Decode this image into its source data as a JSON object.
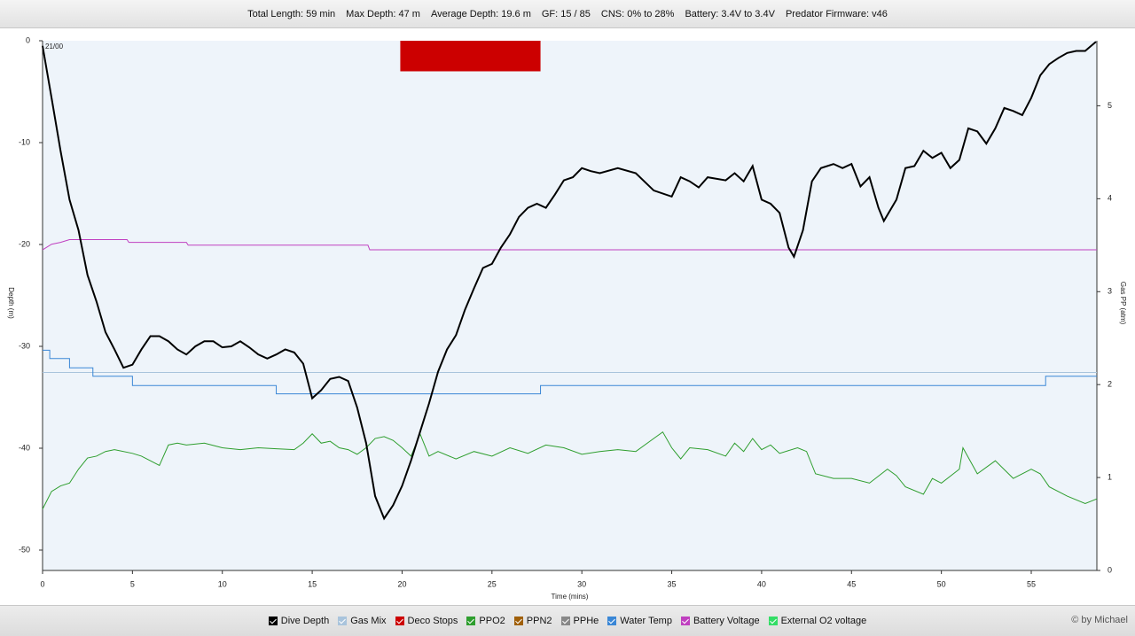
{
  "header": {
    "stats": [
      "Total Length: 59 min",
      "Max Depth: 47 m",
      "Average Depth: 19.6 m",
      "GF: 15 / 85",
      "CNS: 0% to 28%",
      "Battery: 3.4V to 3.4V",
      "Predator Firmware: v46"
    ]
  },
  "chart_data": {
    "type": "line",
    "annotation": "21/00",
    "xlabel": "Time (mins)",
    "ylabel": "Depth (m)",
    "y2label": "Gas PP (atm)",
    "xlim": [
      0,
      58.65
    ],
    "xticks": [
      0,
      5,
      10,
      15,
      20,
      25,
      30,
      35,
      40,
      45,
      50,
      55
    ],
    "ylim": [
      -52,
      0
    ],
    "yticks": [
      0,
      -10,
      -20,
      -30,
      -40,
      -50
    ],
    "y2lim": [
      0,
      5.7
    ],
    "y2ticks": [
      0,
      1,
      2,
      3,
      4,
      5
    ],
    "series": [
      {
        "name": "Dive Depth",
        "color": "#000000",
        "axis": "y",
        "kind": "line",
        "x": [
          0,
          0.5,
          1,
          1.5,
          2,
          2.5,
          3,
          3.5,
          4,
          4.5,
          5,
          5.5,
          6,
          6.5,
          7,
          7.5,
          8,
          8.5,
          9,
          9.5,
          10,
          10.5,
          11,
          11.5,
          12,
          12.5,
          13,
          13.5,
          14,
          14.5,
          15,
          15.5,
          16,
          16.5,
          17,
          17.5,
          18,
          18.5,
          19,
          19.5,
          20,
          20.5,
          21,
          21.5,
          22,
          22.5,
          23,
          23.5,
          24,
          24.5,
          25,
          25.5,
          26,
          26.5,
          27,
          27.5,
          28,
          28.5,
          29,
          29.5,
          30,
          30.5,
          31,
          32,
          33,
          34,
          35,
          35.5,
          36,
          36.5,
          37,
          38,
          38.5,
          39,
          39.5,
          40,
          40.5,
          41,
          41.5,
          41.8,
          42.3,
          42.8,
          43.3,
          44,
          44.5,
          45,
          45.5,
          46,
          46.5,
          46.8,
          47.5,
          48,
          48.5,
          49,
          49.5,
          50,
          50.5,
          51,
          51.5,
          52,
          52.5,
          53,
          53.5,
          54,
          54.5,
          55,
          55.5,
          56,
          56.5,
          57,
          57.5,
          58,
          58.6
        ],
        "values": [
          -0.5,
          -5.6,
          -10.8,
          -15.6,
          -18.6,
          -23,
          -25.6,
          -28.6,
          -30.3,
          -32.1,
          -31.8,
          -30.3,
          -29,
          -29,
          -29.5,
          -30.3,
          -30.8,
          -30,
          -29.5,
          -29.5,
          -30.1,
          -30,
          -29.5,
          -30.1,
          -30.8,
          -31.2,
          -30.8,
          -30.3,
          -30.6,
          -31.7,
          -35.1,
          -34.3,
          -33.2,
          -33,
          -33.4,
          -36,
          -39.5,
          -44.7,
          -46.9,
          -45.6,
          -43.7,
          -41.2,
          -38.4,
          -35.6,
          -32.5,
          -30.3,
          -28.9,
          -26.4,
          -24.3,
          -22.3,
          -21.9,
          -20.3,
          -19,
          -17.3,
          -16.4,
          -16,
          -16.4,
          -15.1,
          -13.7,
          -13.4,
          -12.5,
          -12.8,
          -13,
          -12.5,
          -13,
          -14.7,
          -15.3,
          -13.4,
          -13.8,
          -14.4,
          -13.4,
          -13.7,
          -13,
          -13.8,
          -12.3,
          -15.6,
          -16,
          -16.9,
          -20.3,
          -21.2,
          -18.6,
          -13.8,
          -12.5,
          -12.1,
          -12.5,
          -12.1,
          -14.3,
          -13.4,
          -16.4,
          -17.7,
          -15.6,
          -12.5,
          -12.3,
          -10.8,
          -11.5,
          -11,
          -12.5,
          -11.7,
          -8.6,
          -8.9,
          -10.1,
          -8.6,
          -6.6,
          -6.9,
          -7.3,
          -5.6,
          -3.4,
          -2.3,
          -1.7,
          -1.2,
          -1,
          -1,
          -0.1
        ]
      },
      {
        "name": "Gas Mix",
        "color": "#a9c4dc",
        "axis": "y2",
        "kind": "line",
        "x": [
          0,
          58.65
        ],
        "values": [
          2.13,
          2.13
        ]
      },
      {
        "name": "Deco Stops",
        "color": "#cc0000",
        "axis": "y",
        "kind": "band",
        "x": [
          19.9,
          27.7
        ],
        "values": [
          -3,
          -3
        ]
      },
      {
        "name": "PPO2",
        "color": "#2e9e2e",
        "axis": "y2",
        "kind": "line",
        "x": [
          0,
          0.5,
          1,
          1.5,
          2,
          2.5,
          3,
          3.5,
          4,
          5,
          5.5,
          6,
          6.5,
          7,
          7.5,
          8,
          9,
          10,
          11,
          12,
          13,
          14,
          14.5,
          15,
          15.5,
          16,
          16.5,
          17,
          17.5,
          18,
          18.5,
          19,
          19.5,
          20,
          20.5,
          21,
          21.5,
          22,
          23,
          24,
          25,
          26,
          27,
          28,
          29,
          30,
          31,
          32,
          33,
          34,
          34.5,
          35,
          35.5,
          36,
          37,
          38,
          38.5,
          39,
          39.5,
          40,
          40.5,
          41,
          42,
          42.5,
          43,
          44,
          45,
          46,
          47,
          47.5,
          48,
          49,
          49.5,
          50,
          51,
          51.2,
          52,
          53,
          54,
          55,
          55.5,
          56,
          57,
          58,
          58.65
        ],
        "values": [
          0.66,
          0.85,
          0.91,
          0.94,
          1.09,
          1.21,
          1.23,
          1.28,
          1.3,
          1.26,
          1.23,
          1.18,
          1.13,
          1.35,
          1.37,
          1.35,
          1.37,
          1.32,
          1.3,
          1.32,
          1.31,
          1.3,
          1.37,
          1.47,
          1.37,
          1.39,
          1.32,
          1.3,
          1.25,
          1.32,
          1.42,
          1.44,
          1.4,
          1.32,
          1.23,
          1.47,
          1.23,
          1.28,
          1.2,
          1.28,
          1.23,
          1.32,
          1.26,
          1.35,
          1.32,
          1.25,
          1.28,
          1.3,
          1.28,
          1.42,
          1.49,
          1.32,
          1.2,
          1.32,
          1.3,
          1.23,
          1.37,
          1.28,
          1.42,
          1.3,
          1.35,
          1.26,
          1.32,
          1.28,
          1.04,
          0.99,
          0.99,
          0.94,
          1.09,
          1.02,
          0.9,
          0.82,
          0.99,
          0.94,
          1.09,
          1.32,
          1.04,
          1.18,
          0.99,
          1.09,
          1.04,
          0.9,
          0.8,
          0.72,
          0.77
        ]
      },
      {
        "name": "PPN2",
        "color": "#a0600a",
        "axis": "y2",
        "kind": "line",
        "x": [],
        "values": []
      },
      {
        "name": "PPHe",
        "color": "#888888",
        "axis": "y2",
        "kind": "line",
        "x": [],
        "values": []
      },
      {
        "name": "Water Temp",
        "color": "#3a87d6",
        "axis": "y2",
        "kind": "line",
        "x": [
          0,
          0.4,
          0.4,
          1.5,
          1.5,
          2.8,
          2.8,
          5,
          5,
          13,
          13,
          27.7,
          27.7,
          55.8,
          55.8,
          58.65
        ],
        "values": [
          2.37,
          2.37,
          2.28,
          2.28,
          2.18,
          2.18,
          2.09,
          2.09,
          1.99,
          1.99,
          1.9,
          1.9,
          1.99,
          1.99,
          2.09,
          2.09
        ]
      },
      {
        "name": "Battery Voltage",
        "color": "#c040c0",
        "axis": "y2",
        "kind": "line",
        "x": [
          0,
          0.5,
          1,
          1.5,
          4.7,
          4.8,
          8,
          8.1,
          18.1,
          18.2,
          58.65
        ],
        "values": [
          3.45,
          3.51,
          3.53,
          3.56,
          3.56,
          3.53,
          3.53,
          3.5,
          3.5,
          3.45,
          3.45
        ]
      },
      {
        "name": "External O2 voltage",
        "color": "#33dd66",
        "axis": "y2",
        "kind": "line",
        "x": [],
        "values": []
      }
    ]
  },
  "footer": {
    "credit": "© by Michael"
  }
}
